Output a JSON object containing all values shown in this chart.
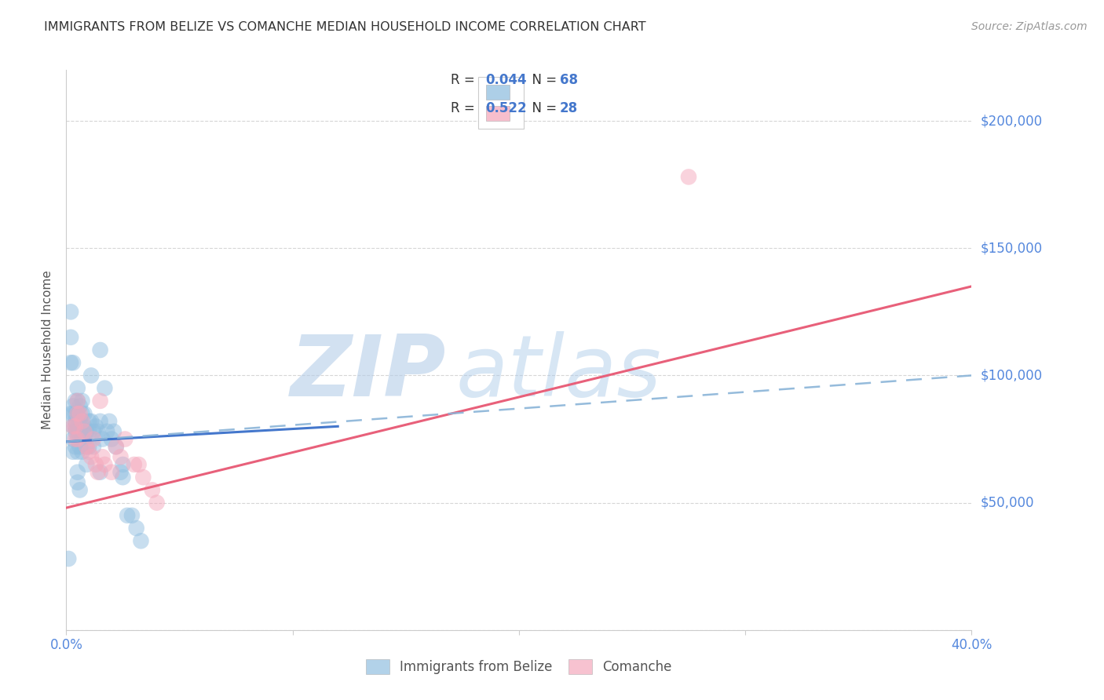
{
  "title": "IMMIGRANTS FROM BELIZE VS COMANCHE MEDIAN HOUSEHOLD INCOME CORRELATION CHART",
  "source": "Source: ZipAtlas.com",
  "ylabel": "Median Household Income",
  "xlim": [
    0.0,
    0.4
  ],
  "ylim": [
    0,
    220000
  ],
  "yticks": [
    0,
    50000,
    100000,
    150000,
    200000
  ],
  "blue_color": "#92bfe0",
  "pink_color": "#f5a8bc",
  "blue_line_color": "#4477cc",
  "pink_line_color": "#e8607a",
  "dashed_line_color": "#8ab4d8",
  "watermark_zip": "ZIP",
  "watermark_atlas": "atlas",
  "blue_scatter_x": [
    0.001,
    0.002,
    0.002,
    0.002,
    0.003,
    0.003,
    0.003,
    0.003,
    0.004,
    0.004,
    0.004,
    0.004,
    0.004,
    0.005,
    0.005,
    0.005,
    0.005,
    0.005,
    0.005,
    0.005,
    0.006,
    0.006,
    0.006,
    0.006,
    0.007,
    0.007,
    0.007,
    0.007,
    0.007,
    0.008,
    0.008,
    0.008,
    0.009,
    0.009,
    0.009,
    0.01,
    0.01,
    0.01,
    0.011,
    0.011,
    0.012,
    0.012,
    0.013,
    0.014,
    0.015,
    0.015,
    0.015,
    0.016,
    0.017,
    0.018,
    0.019,
    0.02,
    0.021,
    0.022,
    0.024,
    0.025,
    0.025,
    0.027,
    0.029,
    0.031,
    0.033,
    0.002,
    0.003,
    0.003,
    0.004,
    0.005,
    0.005,
    0.006
  ],
  "blue_scatter_y": [
    28000,
    115000,
    85000,
    105000,
    80000,
    75000,
    70000,
    88000,
    90000,
    85000,
    80000,
    78000,
    72000,
    95000,
    90000,
    85000,
    80000,
    78000,
    75000,
    70000,
    88000,
    83000,
    78000,
    72000,
    90000,
    85000,
    80000,
    75000,
    70000,
    85000,
    80000,
    75000,
    78000,
    72000,
    65000,
    82000,
    78000,
    72000,
    100000,
    82000,
    78000,
    72000,
    80000,
    78000,
    110000,
    82000,
    62000,
    75000,
    95000,
    78000,
    82000,
    75000,
    78000,
    72000,
    62000,
    65000,
    60000,
    45000,
    45000,
    40000,
    35000,
    125000,
    85000,
    105000,
    82000,
    58000,
    62000,
    55000
  ],
  "pink_scatter_x": [
    0.003,
    0.004,
    0.004,
    0.005,
    0.005,
    0.006,
    0.007,
    0.008,
    0.009,
    0.01,
    0.011,
    0.012,
    0.013,
    0.014,
    0.015,
    0.016,
    0.017,
    0.02,
    0.022,
    0.024,
    0.026,
    0.03,
    0.032,
    0.034,
    0.038,
    0.04,
    0.005,
    0.275
  ],
  "pink_scatter_y": [
    80000,
    80000,
    75000,
    90000,
    85000,
    85000,
    82000,
    78000,
    72000,
    70000,
    68000,
    75000,
    65000,
    62000,
    90000,
    68000,
    65000,
    62000,
    72000,
    68000,
    75000,
    65000,
    65000,
    60000,
    55000,
    50000,
    75000,
    178000
  ],
  "blue_trendline_x": [
    0.0,
    0.12
  ],
  "blue_trendline_y": [
    74000,
    80000
  ],
  "pink_trendline_x": [
    0.0,
    0.4
  ],
  "pink_trendline_y": [
    48000,
    135000
  ],
  "dashed_line_x": [
    0.0,
    0.4
  ],
  "dashed_line_y": [
    74000,
    100000
  ],
  "grid_color": "#cccccc",
  "axis_color": "#cccccc",
  "ylabel_color": "#555555",
  "ytick_right_color": "#5588dd",
  "title_color": "#333333",
  "source_color": "#999999",
  "legend_text_color": "#333333",
  "legend_value_color": "#4477cc",
  "ytick_right_labels": [
    "$200,000",
    "$150,000",
    "$100,000",
    "$50,000"
  ],
  "ytick_right_values": [
    200000,
    150000,
    100000,
    50000
  ]
}
